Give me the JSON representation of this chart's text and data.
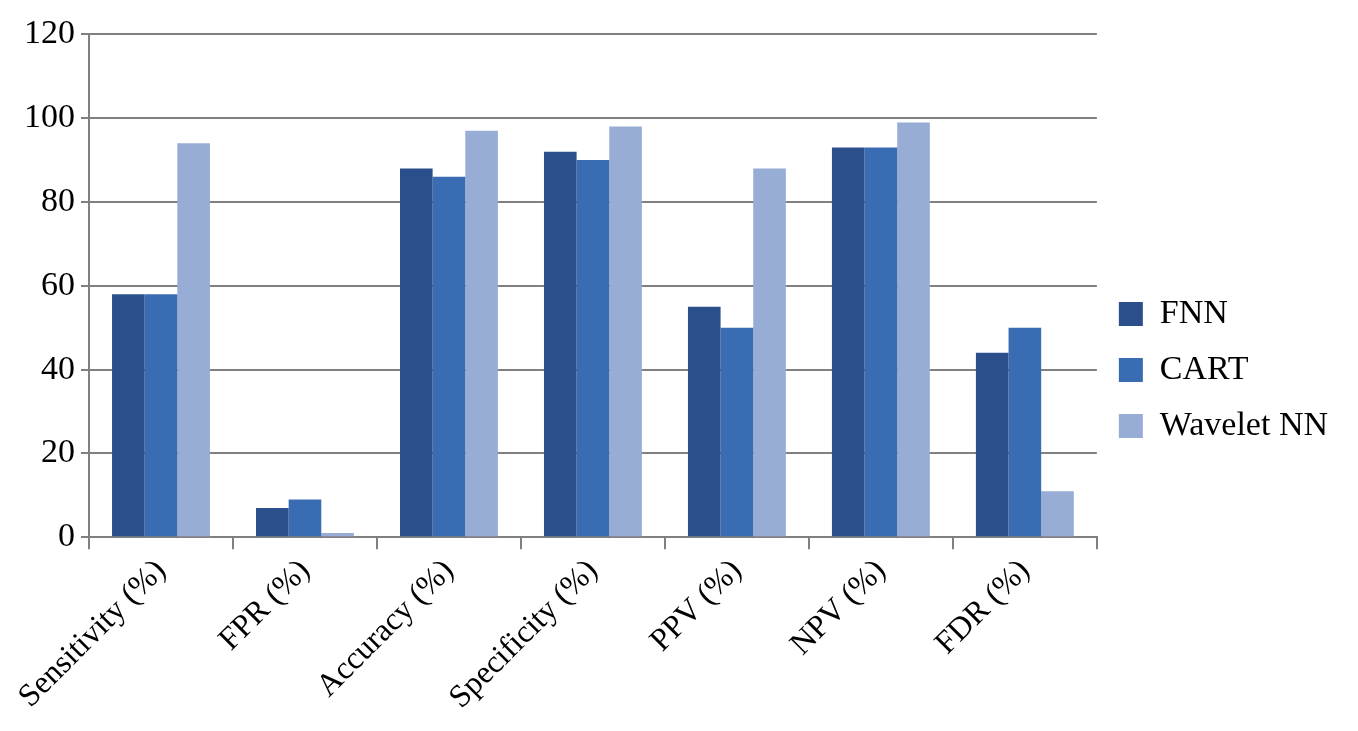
{
  "chart_data": {
    "type": "bar",
    "categories": [
      "Sensitivity (%)",
      "FPR (%)",
      "Accuracy (%)",
      "Specificity (%)",
      "PPV (%)",
      "NPV (%)",
      "FDR (%)"
    ],
    "series": [
      {
        "name": "FNN",
        "color": "#2b4f8a",
        "values": [
          58,
          7,
          88,
          92,
          55,
          93,
          44
        ]
      },
      {
        "name": "CART",
        "color": "#3a6cb4",
        "values": [
          58,
          9,
          86,
          90,
          50,
          93,
          50
        ]
      },
      {
        "name": "Wavelet NN",
        "color": "#98add6",
        "values": [
          94,
          1,
          97,
          98,
          88,
          99,
          11
        ]
      }
    ],
    "ylim": [
      0,
      120
    ],
    "yticks": [
      0,
      20,
      40,
      60,
      80,
      100,
      120
    ],
    "grid": "y",
    "legend": "right"
  }
}
